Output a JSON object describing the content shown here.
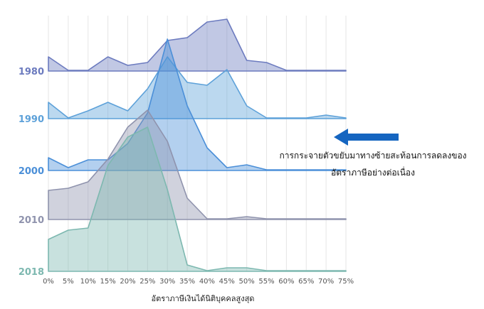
{
  "chart_data": {
    "type": "area",
    "title": "",
    "xlabel": "อัตราภาษีเงินได้นิติบุคคลสูงสุด",
    "ylabel": "",
    "x": [
      0,
      5,
      10,
      15,
      20,
      25,
      30,
      35,
      40,
      45,
      50,
      55,
      60,
      65,
      70,
      75
    ],
    "x_tick_labels": [
      "0%",
      "5%",
      "10%",
      "15%",
      "20%",
      "25%",
      "30%",
      "35%",
      "40%",
      "45%",
      "50%",
      "55%",
      "60%",
      "65%",
      "70%",
      "75%"
    ],
    "grid": true,
    "legend": "none",
    "series": [
      {
        "name": "1980",
        "color": "#6c7bbf",
        "values": [
          20,
          1,
          1,
          20,
          8,
          12,
          43,
          47,
          69,
          73,
          15,
          12,
          1,
          1,
          1,
          1
        ]
      },
      {
        "name": "1990",
        "color": "#5da1d9",
        "values": [
          23,
          1,
          11,
          23,
          11,
          42,
          87,
          51,
          47,
          69,
          18,
          1,
          1,
          1,
          5,
          1
        ]
      },
      {
        "name": "2000",
        "color": "#4b8fd8",
        "values": [
          18,
          4,
          15,
          15,
          38,
          81,
          185,
          91,
          32,
          4,
          8,
          1,
          1,
          1,
          1,
          1
        ]
      },
      {
        "name": "2010",
        "color": "#8f93ad",
        "values": [
          41,
          44,
          53,
          85,
          130,
          154,
          110,
          30,
          1,
          1,
          4,
          1,
          1,
          1,
          1,
          1
        ]
      },
      {
        "name": "2018",
        "color": "#7db8b0",
        "values": [
          45,
          58,
          61,
          149,
          189,
          203,
          115,
          9,
          1,
          5,
          5,
          1,
          1,
          1,
          1,
          1
        ]
      }
    ],
    "annotation": {
      "line1": "การกระจายตัวขยับมาทางซ้ายสะท้อนการลดลงของ",
      "line2": "อัตราภาษีอย่างต่อเนื่อง",
      "arrow": "left",
      "arrow_color": "#1565c0"
    }
  }
}
